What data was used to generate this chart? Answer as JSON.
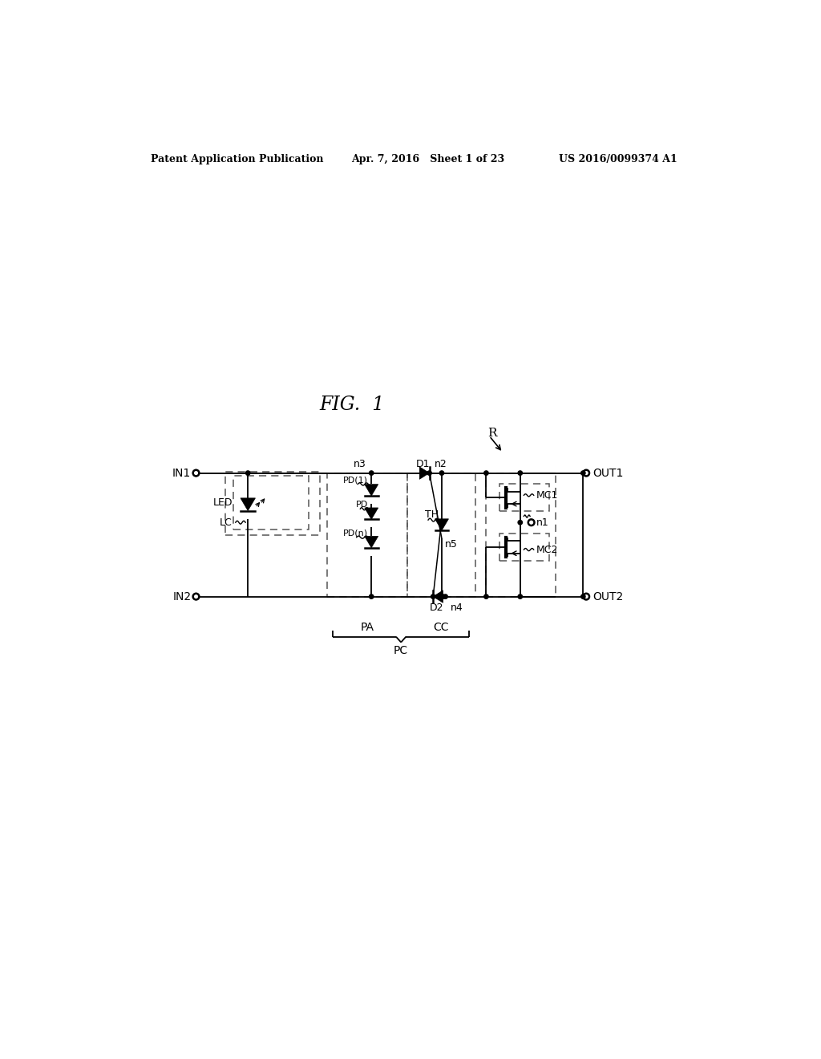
{
  "bg_color": "#ffffff",
  "header_left": "Patent Application Publication",
  "header_center": "Apr. 7, 2016   Sheet 1 of 23",
  "header_right": "US 2016/0099374 A1",
  "fig_title": "FIG.  1",
  "label_R": "R",
  "label_IN1": "IN1",
  "label_IN2": "IN2",
  "label_LED": "LED",
  "label_LC": "LC",
  "label_PD1": "PD(1)",
  "label_PD": "PD",
  "label_PDn": "PD(n)",
  "label_TH": "TH",
  "label_n2": "n2",
  "label_n3": "n3",
  "label_n4": "n4",
  "label_n5": "n5",
  "label_D1": "D1",
  "label_D2": "D2",
  "label_PA": "PA",
  "label_CC": "CC",
  "label_PC": "PC",
  "label_MC1": "MC1",
  "label_MC2": "MC2",
  "label_n1": "n1",
  "label_OUT1": "OUT1",
  "label_OUT2": "OUT2"
}
